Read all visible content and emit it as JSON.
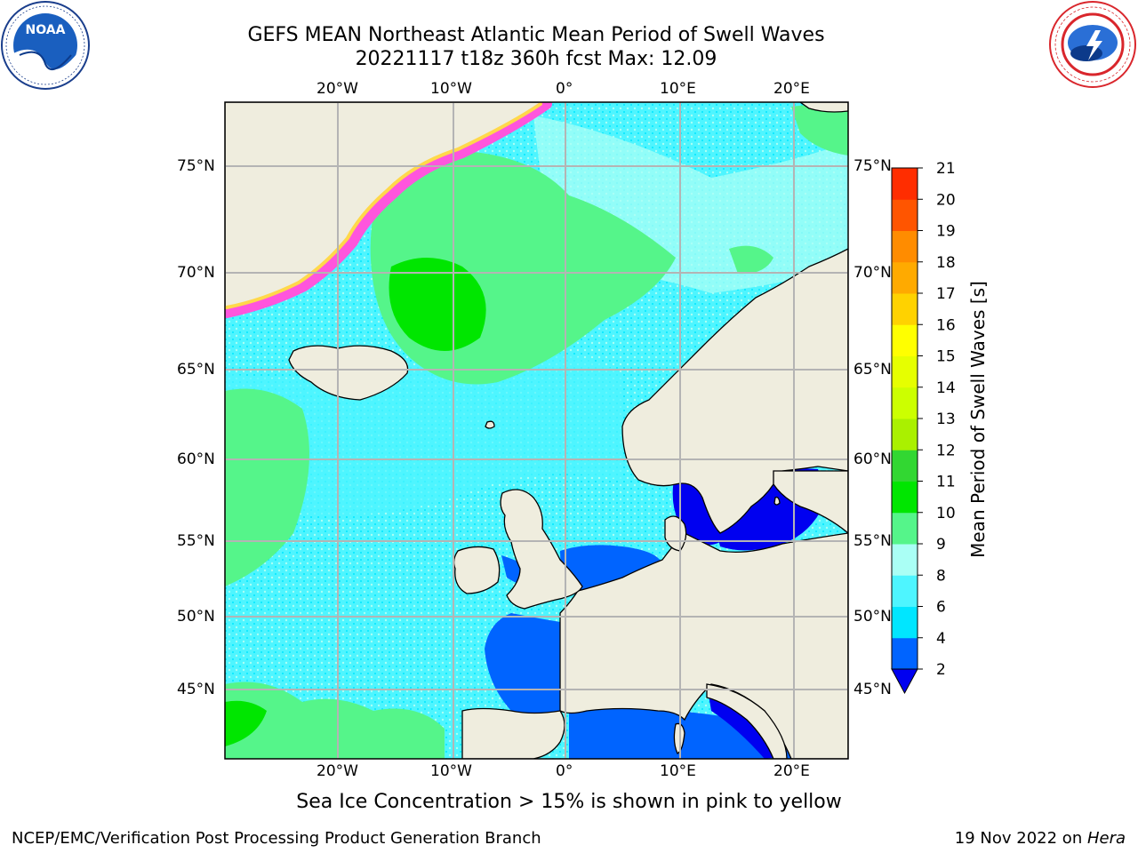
{
  "header": {
    "title_line1": "GEFS MEAN Northeast Atlantic Mean Period of Swell Waves",
    "title_line2": "20221117 t18z 360h fcst   Max: 12.09"
  },
  "logos": {
    "noaa_text": "NOAA",
    "noaa_ring": "NATIONAL OCEANIC AND ATMOSPHERIC ADMINISTRATION · U.S. DEPARTMENT OF COMMERCE",
    "nws_ring": "NATIONAL WEATHER SERVICE"
  },
  "map": {
    "lon_labels": [
      "20°W",
      "10°W",
      "0°",
      "10°E",
      "20°E"
    ],
    "lat_labels": [
      "75°N",
      "70°N",
      "65°N",
      "60°N",
      "55°N",
      "50°N",
      "45°N"
    ],
    "colors": {
      "land": "#efedde",
      "coast": "#000000",
      "grid": "#b4b4b4",
      "ice_pink": "#ff55dd",
      "ice_yellow": "#ffd84a"
    }
  },
  "colorbar": {
    "label": "Mean Period of Swell Waves [s]",
    "ticks": [
      "2",
      "4",
      "6",
      "8",
      "9",
      "10",
      "11",
      "12",
      "13",
      "14",
      "15",
      "16",
      "17",
      "18",
      "19",
      "20",
      "21"
    ],
    "colors": [
      "#0064ff",
      "#00e6ff",
      "#4ef5ff",
      "#aafff5",
      "#55f58a",
      "#00e600",
      "#32d732",
      "#aaf000",
      "#ccff00",
      "#e6ff00",
      "#ffff00",
      "#ffd200",
      "#ffaa00",
      "#ff8c00",
      "#ff5500",
      "#ff2d00",
      "#ff0000"
    ],
    "extend_color": "#0000f0"
  },
  "note": "Sea Ice Concentration > 15% is shown in pink to yellow",
  "footer": {
    "left": "NCEP/EMC/Verification Post Processing Product Generation Branch",
    "right_date": "19 Nov 2022 on ",
    "right_host": "Hera"
  }
}
